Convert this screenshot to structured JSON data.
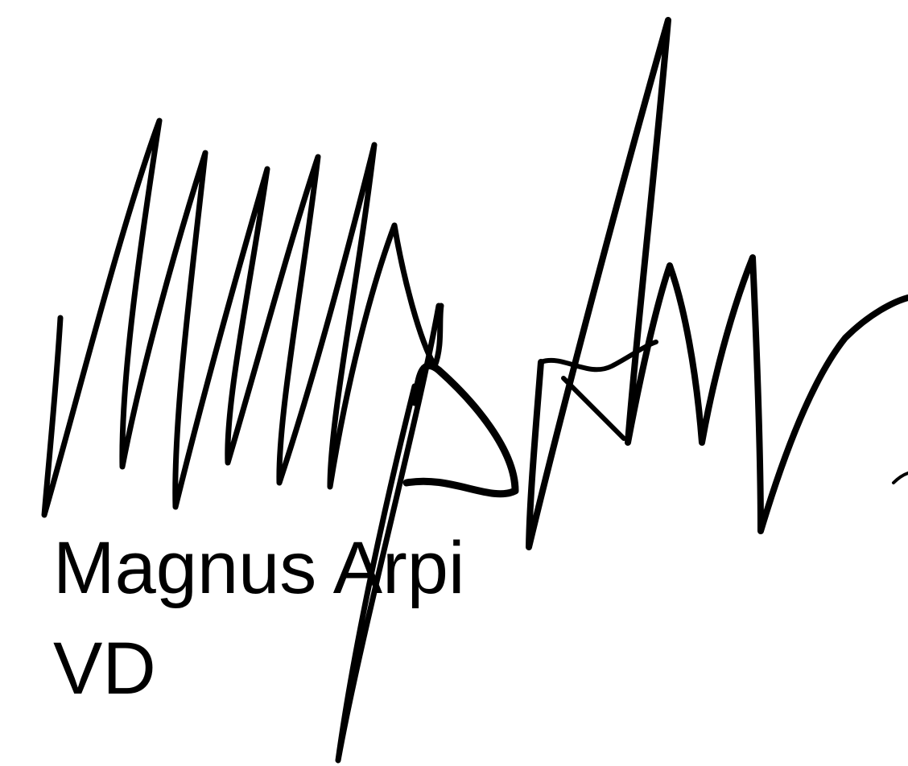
{
  "signature": {
    "name": "Magnus Arpi",
    "title": "VD"
  }
}
